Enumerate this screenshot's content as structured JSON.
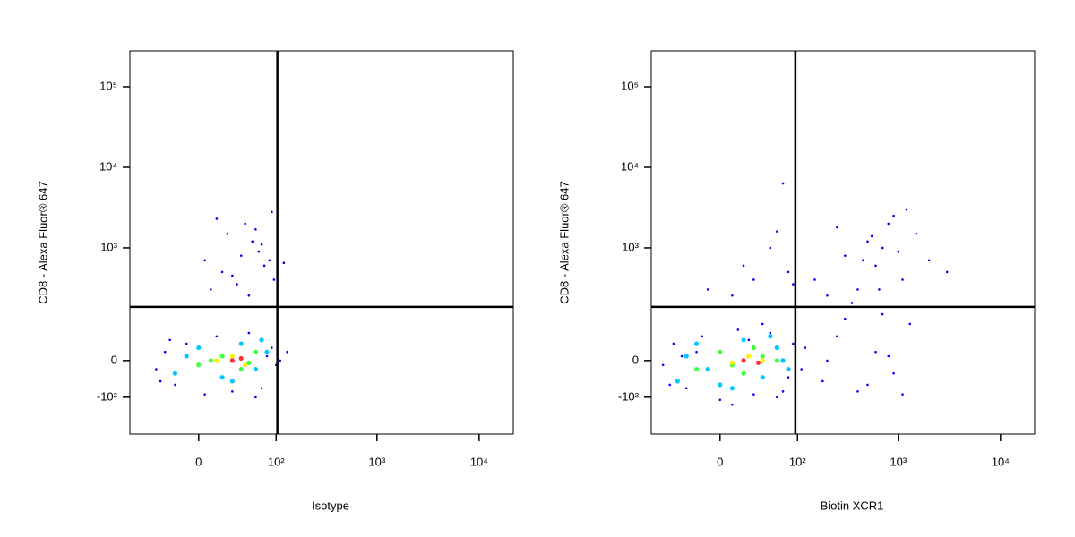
{
  "chart_data": [
    {
      "type": "scatter",
      "xlabel": "Isotype",
      "ylabel": "CD8 - Alexa Fluor® 647",
      "xscale": "logicle",
      "yscale": "logicle",
      "xlim": [
        -81,
        21600
      ],
      "ylim": [
        -322,
        278000
      ],
      "xticks": [
        0,
        {
          "value": 100,
          "label": "10²"
        },
        {
          "value": 1000,
          "label": "10³"
        },
        {
          "value": 10000,
          "label": "10⁴"
        }
      ],
      "yticks": [
        {
          "value": -100,
          "label": "-10²"
        },
        0,
        {
          "value": 1000,
          "label": "10³"
        },
        {
          "value": 10000,
          "label": "10⁴"
        },
        {
          "value": 100000,
          "label": "10⁵"
        }
      ],
      "gates": {
        "x": 103,
        "y": 177
      },
      "series": [
        {
          "color": "#0000ff",
          "x": [
            -40,
            -30,
            -20,
            -10,
            5,
            15,
            30,
            50,
            70,
            90,
            100,
            -35,
            -25,
            60,
            80,
            110,
            130,
            10,
            20,
            40,
            55,
            75,
            95,
            25,
            45,
            65,
            85,
            35,
            50,
            70,
            15,
            30,
            60,
            90,
            5,
            120
          ],
          "y": [
            -20,
            20,
            -60,
            40,
            -90,
            60,
            -80,
            70,
            -70,
            30,
            -10,
            -50,
            50,
            -100,
            10,
            0,
            20,
            300,
            500,
            800,
            1200,
            600,
            400,
            1500,
            2000,
            900,
            700,
            350,
            250,
            1100,
            2300,
            450,
            1700,
            2800,
            700,
            650
          ]
        },
        {
          "color": "#00c8ff",
          "x": [
            -20,
            0,
            20,
            40,
            60,
            80,
            -10,
            30,
            70
          ],
          "y": [
            -30,
            30,
            -40,
            40,
            -20,
            20,
            10,
            -50,
            50
          ]
        },
        {
          "color": "#40ff40",
          "x": [
            0,
            20,
            40,
            60,
            10,
            50
          ],
          "y": [
            -10,
            10,
            -20,
            20,
            0,
            -5
          ]
        },
        {
          "color": "#ffee00",
          "x": [
            15,
            30,
            45
          ],
          "y": [
            0,
            10,
            -10
          ]
        },
        {
          "color": "#ff3030",
          "x": [
            30,
            40
          ],
          "y": [
            0,
            5
          ]
        }
      ]
    },
    {
      "type": "scatter",
      "xlabel": "Biotin XCR1",
      "ylabel": "CD8 - Alexa Fluor® 647",
      "xscale": "logicle",
      "yscale": "logicle",
      "xlim": [
        -81,
        21600
      ],
      "ylim": [
        -322,
        278000
      ],
      "xticks": [
        0,
        {
          "value": 100,
          "label": "10²"
        },
        {
          "value": 1000,
          "label": "10³"
        },
        {
          "value": 10000,
          "label": "10⁴"
        }
      ],
      "yticks": [
        {
          "value": -100,
          "label": "-10²"
        },
        0,
        {
          "value": 1000,
          "label": "10³"
        },
        {
          "value": 10000,
          "label": "10⁴"
        },
        {
          "value": 100000,
          "label": "10⁵"
        }
      ],
      "gates": {
        "x": 95,
        "y": 177
      },
      "series": [
        {
          "color": "#0000ff",
          "x": [
            -60,
            -45,
            -30,
            -15,
            0,
            15,
            30,
            50,
            70,
            90,
            110,
            -50,
            -20,
            10,
            40,
            80,
            120,
            60,
            -35,
            25,
            -10,
            20,
            50,
            80,
            30,
            60,
            10,
            90,
            150,
            200,
            300,
            400,
            500,
            600,
            800,
            1000,
            1200,
            1500,
            2000,
            3000,
            250,
            350,
            700,
            900,
            1100,
            450,
            550,
            650,
            180,
            250,
            400,
            600,
            900,
            1300,
            300,
            500,
            800,
            1100,
            200,
            700,
            70
          ],
          "y": [
            -10,
            40,
            -70,
            60,
            -110,
            80,
            -90,
            70,
            -80,
            40,
            -20,
            -60,
            20,
            -130,
            100,
            -40,
            30,
            -100,
            10,
            50,
            300,
            600,
            1000,
            500,
            400,
            1600,
            250,
            350,
            400,
            250,
            800,
            300,
            1200,
            600,
            2000,
            900,
            3000,
            1500,
            700,
            500,
            1800,
            200,
            1000,
            2500,
            400,
            700,
            1400,
            300,
            -50,
            60,
            -80,
            20,
            -30,
            100,
            120,
            -60,
            10,
            -90,
            0,
            140,
            6300
          ]
        },
        {
          "color": "#00c8ff",
          "x": [
            -40,
            -20,
            0,
            20,
            40,
            60,
            80,
            -30,
            10,
            50,
            70,
            -10
          ],
          "y": [
            -50,
            40,
            -60,
            50,
            -40,
            30,
            -20,
            10,
            -70,
            60,
            0,
            -20
          ]
        },
        {
          "color": "#40ff40",
          "x": [
            -20,
            0,
            20,
            40,
            60,
            10,
            30
          ],
          "y": [
            -20,
            20,
            -30,
            10,
            0,
            -10,
            30
          ]
        },
        {
          "color": "#ffee00",
          "x": [
            10,
            25,
            40
          ],
          "y": [
            -5,
            10,
            0
          ]
        },
        {
          "color": "#ff3030",
          "x": [
            20,
            35
          ],
          "y": [
            0,
            -5
          ]
        }
      ]
    }
  ]
}
